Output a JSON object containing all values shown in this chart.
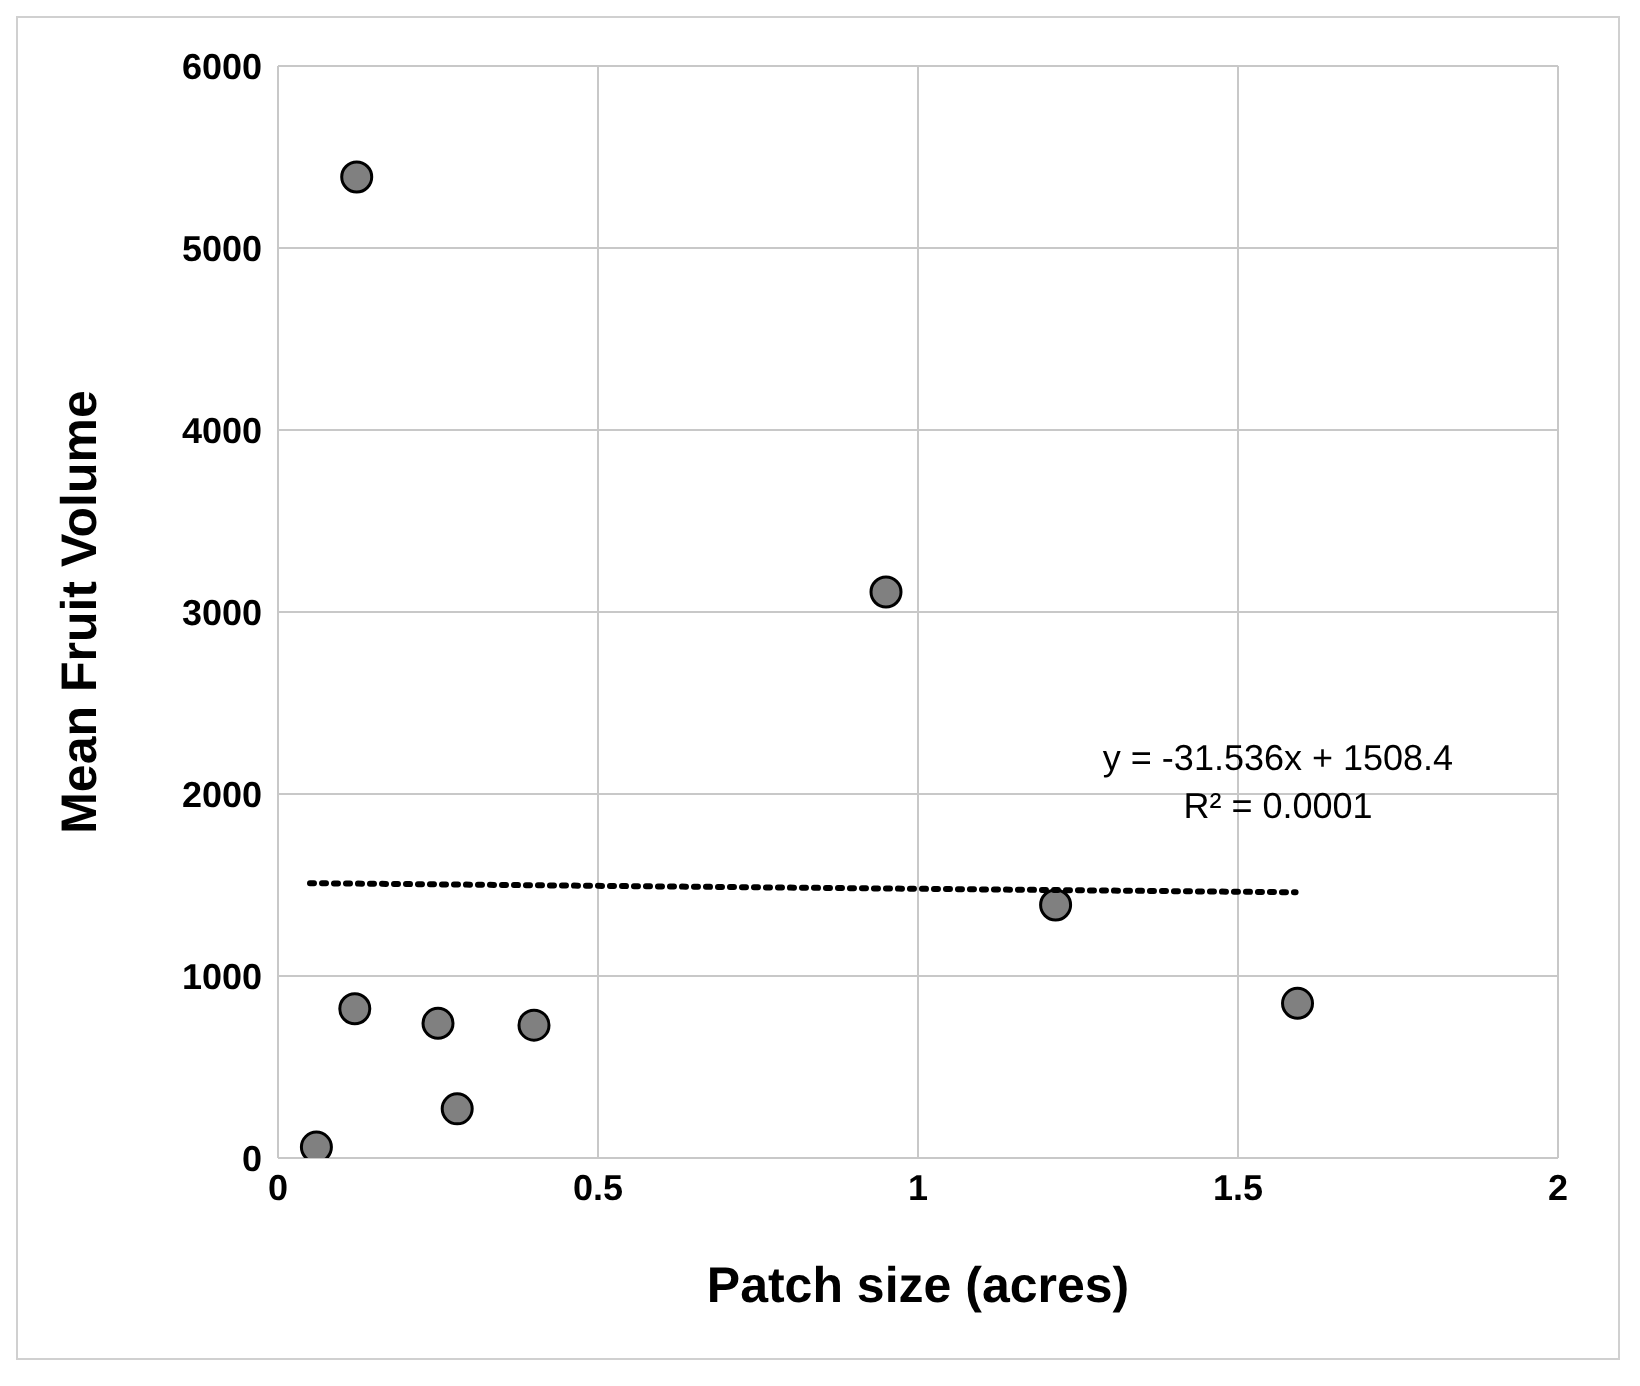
{
  "chart_data": {
    "type": "scatter",
    "xlabel": "Patch size (acres)",
    "ylabel": "Mean Fruit Volume",
    "xlim": [
      0,
      2
    ],
    "xticks": [
      0,
      0.5,
      1,
      1.5,
      2
    ],
    "ylim": [
      0,
      6000
    ],
    "yticks": [
      0,
      1000,
      2000,
      3000,
      4000,
      5000,
      6000
    ],
    "grid": true,
    "marker": "circle",
    "series": [
      {
        "color": "#808080",
        "x": [
          0.06,
          0.123,
          0.12,
          0.25,
          0.28,
          0.4,
          0.95,
          1.215,
          1.593
        ],
        "values": [
          60,
          5390,
          820,
          740,
          270,
          730,
          3110,
          1390,
          850
        ]
      },
      {
        "type": "line",
        "color": "#000000",
        "line_style": "dotted",
        "marker": "none",
        "x": [
          0.05,
          1.59
        ],
        "values": [
          1510,
          1460
        ]
      }
    ],
    "annotations": [
      "y = -31.536x + 1508.4",
      "R² = 0.0001"
    ]
  }
}
